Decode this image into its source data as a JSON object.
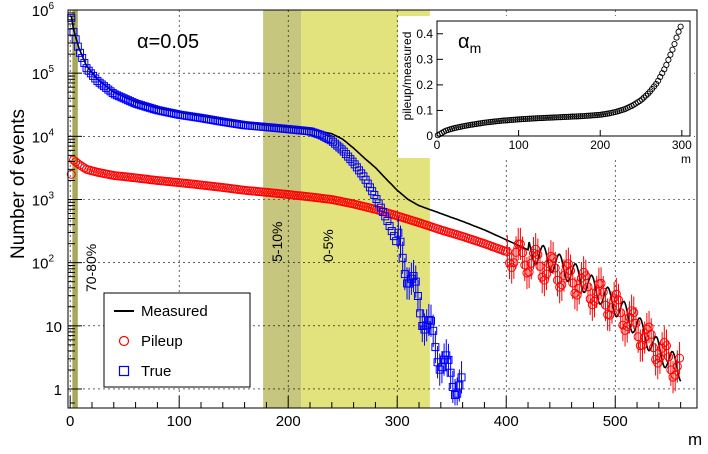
{
  "chart_data": [
    {
      "type": "scatter",
      "panel": "main",
      "annotation_alpha": "α=0.05",
      "xlabel": "m",
      "ylabel": "Number of events",
      "xlim": [
        -2,
        575
      ],
      "ylim": [
        0.5,
        1000000
      ],
      "yscale": "log",
      "grid": true,
      "legend_position": "bottom-left",
      "x_ticks": [
        "0",
        "100",
        "200",
        "300",
        "400",
        "500"
      ],
      "y_ticks": [
        {
          "value": 1,
          "label": "1"
        },
        {
          "value": 10,
          "label": "10"
        },
        {
          "value": 100,
          "label": "10",
          "exp": "2"
        },
        {
          "value": 1000,
          "label": "10",
          "exp": "3"
        },
        {
          "value": 10000,
          "label": "10",
          "exp": "4"
        },
        {
          "value": 100000,
          "label": "10",
          "exp": "5"
        },
        {
          "value": 1000000,
          "label": "10",
          "exp": "6"
        }
      ],
      "centrality_bands": [
        {
          "label": "70-80%",
          "x_from": 2,
          "x_to": 7,
          "color": "#a8a85a"
        },
        {
          "label": "5-10%",
          "x_from": 177,
          "x_to": 212,
          "color": "#c6c67e"
        },
        {
          "label": "0-5%",
          "x_from": 212,
          "x_to": 330,
          "color": "#e3e37e"
        }
      ],
      "series": [
        {
          "name": "Measured",
          "color": "#000000",
          "style": "line",
          "x": [
            1,
            3,
            8,
            15,
            25,
            40,
            60,
            80,
            100,
            120,
            140,
            160,
            180,
            200,
            220,
            240,
            250,
            260,
            270,
            280,
            290,
            300,
            310,
            320,
            340,
            360,
            380,
            400,
            420,
            440,
            460,
            480,
            500,
            520,
            540,
            560
          ],
          "y": [
            800000,
            500000,
            250000,
            130000,
            80000,
            50000,
            35000,
            28000,
            24000,
            21000,
            18500,
            16500,
            15000,
            14000,
            13000,
            11000,
            9000,
            6500,
            4500,
            3200,
            2100,
            1400,
            1000,
            800,
            600,
            450,
            330,
            230,
            160,
            110,
            70,
            40,
            22,
            10,
            4,
            2
          ]
        },
        {
          "name": "Pileup",
          "color": "#ff0000",
          "style": "circle",
          "x": [
            1,
            3,
            8,
            15,
            25,
            40,
            60,
            80,
            100,
            120,
            140,
            160,
            180,
            200,
            220,
            240,
            260,
            280,
            300,
            320,
            340,
            360,
            380,
            400,
            420,
            440,
            460,
            480,
            500,
            520,
            540,
            560
          ],
          "y": [
            2500,
            4200,
            3600,
            3000,
            2700,
            2400,
            2200,
            2000,
            1850,
            1700,
            1550,
            1400,
            1300,
            1200,
            1100,
            1000,
            850,
            700,
            550,
            430,
            330,
            260,
            200,
            150,
            110,
            80,
            55,
            35,
            20,
            9,
            4,
            2
          ]
        },
        {
          "name": "True",
          "color": "#0000ff",
          "style": "square",
          "x": [
            1,
            3,
            8,
            15,
            25,
            40,
            60,
            80,
            100,
            120,
            140,
            160,
            180,
            200,
            220,
            230,
            240,
            250,
            260,
            270,
            280,
            290,
            300,
            310,
            320,
            330,
            340,
            350,
            360
          ],
          "y": [
            750000,
            450000,
            230000,
            120000,
            75000,
            47000,
            33000,
            26000,
            22000,
            19500,
            17000,
            15000,
            14000,
            13000,
            12000,
            10500,
            8500,
            6000,
            3800,
            2200,
            1100,
            500,
            200,
            70,
            22,
            8,
            3,
            1.5,
            1
          ]
        }
      ]
    },
    {
      "type": "scatter",
      "panel": "inset",
      "title": "α",
      "title_sub": "m",
      "xlabel": "m",
      "ylabel": "pileup/measured",
      "xlim": [
        0,
        310
      ],
      "ylim": [
        0,
        0.45
      ],
      "x_ticks": [
        "0",
        "100",
        "200",
        "300"
      ],
      "y_ticks": [
        "0",
        "0.1",
        "0.2",
        "0.3",
        "0.4"
      ],
      "series": [
        {
          "name": "pileup/measured",
          "color": "#000000",
          "x": [
            1,
            5,
            10,
            20,
            30,
            40,
            60,
            80,
            100,
            120,
            140,
            160,
            180,
            200,
            210,
            220,
            230,
            240,
            250,
            260,
            270,
            280,
            290,
            295,
            300
          ],
          "y": [
            0.003,
            0.01,
            0.02,
            0.03,
            0.037,
            0.043,
            0.053,
            0.06,
            0.065,
            0.069,
            0.072,
            0.075,
            0.078,
            0.083,
            0.088,
            0.095,
            0.105,
            0.12,
            0.14,
            0.17,
            0.21,
            0.27,
            0.35,
            0.4,
            0.44
          ]
        }
      ]
    }
  ],
  "legend": {
    "items": [
      "Measured",
      "Pileup",
      "True"
    ]
  }
}
